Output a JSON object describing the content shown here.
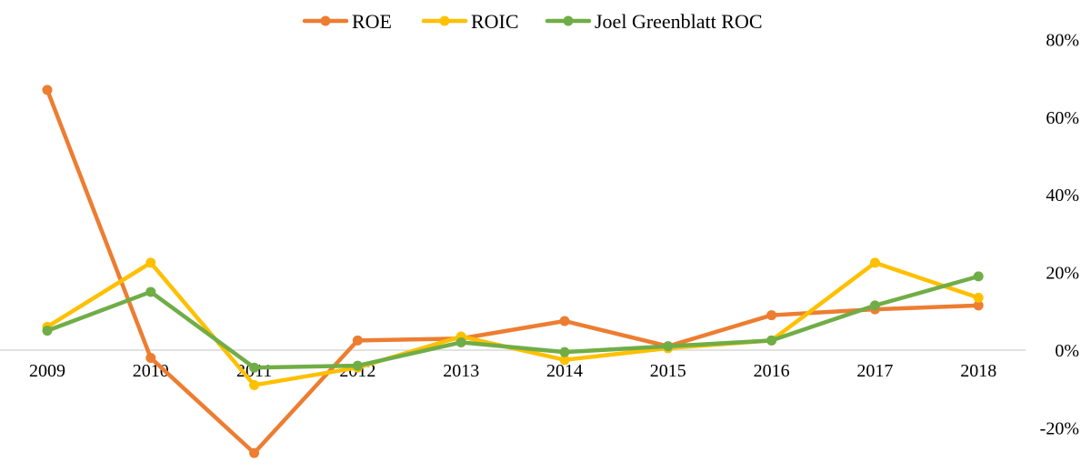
{
  "chart_data": {
    "type": "line",
    "title": "",
    "xlabel": "",
    "ylabel": "",
    "categories": [
      "2009",
      "2010",
      "2011",
      "2012",
      "2013",
      "2014",
      "2015",
      "2016",
      "2017",
      "2018"
    ],
    "ylim": [
      -20,
      80
    ],
    "y_ticks": [
      -20,
      0,
      20,
      40,
      60,
      80
    ],
    "y_tick_labels": [
      "-20%",
      "0%",
      "20%",
      "40%",
      "60%",
      "80%"
    ],
    "y_axis_position": "right",
    "grid": false,
    "legend_position": "top",
    "series": [
      {
        "name": "ROE",
        "color": "#ED7D31",
        "values": [
          67.0,
          -2.0,
          -26.5,
          2.5,
          3.0,
          7.5,
          1.0,
          9.0,
          10.5,
          11.5
        ]
      },
      {
        "name": "ROIC",
        "color": "#FFC000",
        "values": [
          6.0,
          22.5,
          -9.0,
          -4.5,
          3.5,
          -2.5,
          0.5,
          2.5,
          22.5,
          13.5
        ]
      },
      {
        "name": "Joel Greenblatt ROC",
        "color": "#70AD47",
        "values": [
          5.0,
          15.0,
          -4.5,
          -4.0,
          2.0,
          -0.5,
          1.0,
          2.5,
          11.5,
          19.0
        ]
      }
    ]
  }
}
